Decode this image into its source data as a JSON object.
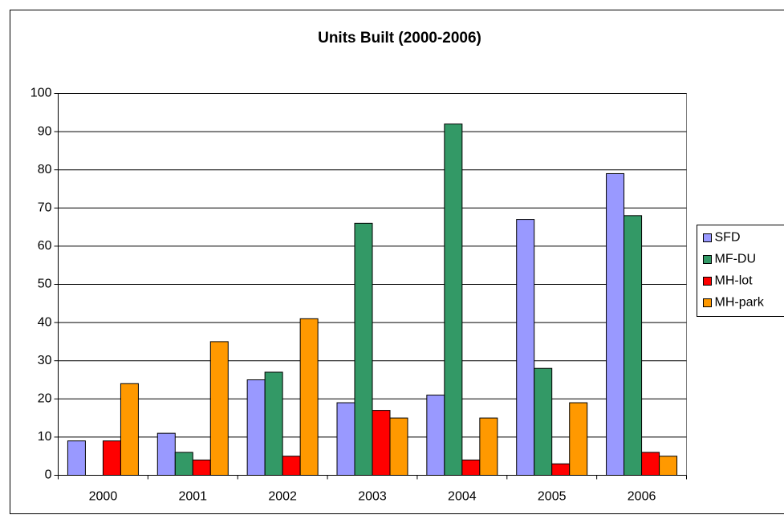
{
  "chart_data": {
    "type": "bar",
    "title": "Units Built (2000-2006)",
    "categories": [
      "2000",
      "2001",
      "2002",
      "2003",
      "2004",
      "2005",
      "2006"
    ],
    "series": [
      {
        "name": "SFD",
        "color": "#9999ff",
        "values": [
          9,
          11,
          25,
          19,
          21,
          67,
          79
        ]
      },
      {
        "name": "MF-DU",
        "color": "#339966",
        "values": [
          0,
          6,
          27,
          66,
          92,
          28,
          68
        ]
      },
      {
        "name": "MH-lot",
        "color": "#ff0000",
        "values": [
          9,
          4,
          5,
          17,
          4,
          3,
          6
        ]
      },
      {
        "name": "MH-park",
        "color": "#ff9900",
        "values": [
          24,
          35,
          41,
          15,
          15,
          19,
          5
        ]
      }
    ],
    "ylim": [
      0,
      100
    ],
    "yticks": [
      0,
      10,
      20,
      30,
      40,
      50,
      60,
      70,
      80,
      90,
      100
    ],
    "grid": true,
    "legend": "right"
  }
}
